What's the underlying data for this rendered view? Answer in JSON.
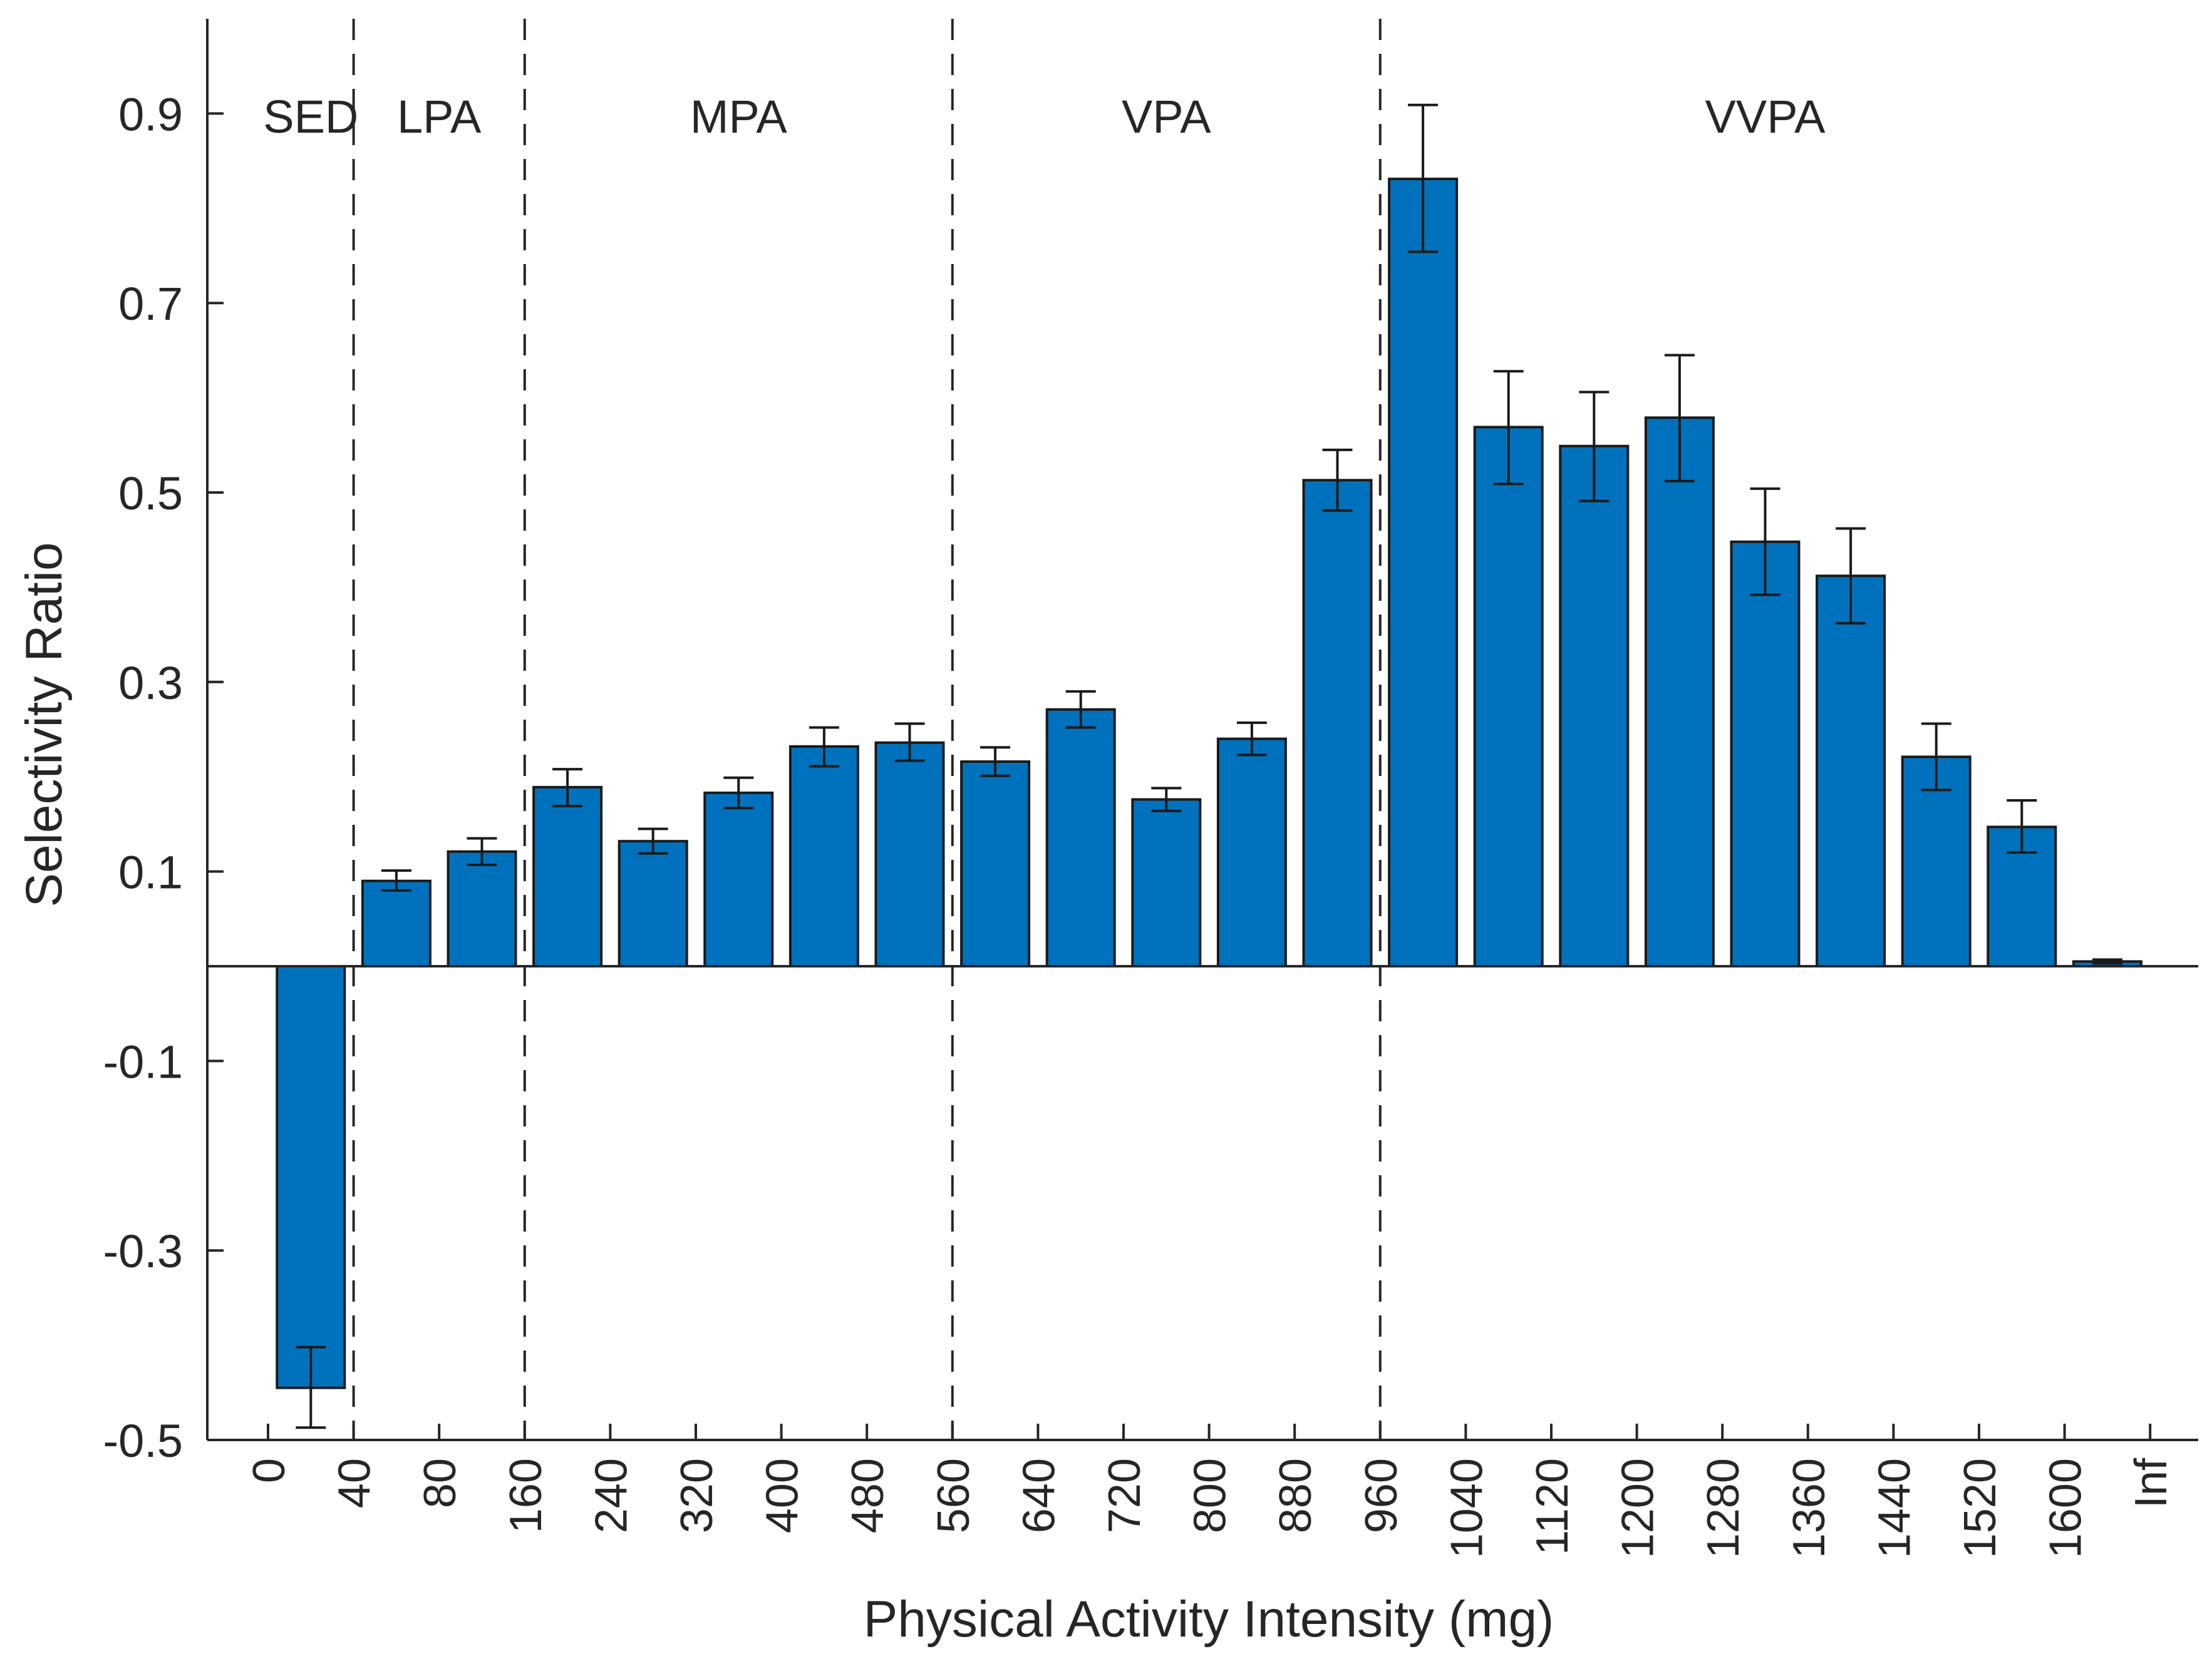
{
  "chart_data": {
    "type": "bar",
    "title": "",
    "xlabel": "Physical Activity Intensity (mg)",
    "ylabel": "Selectivity Ratio",
    "ylim": [
      -0.5,
      1.0
    ],
    "yticks": [
      -0.5,
      -0.3,
      -0.1,
      0.1,
      0.3,
      0.5,
      0.7,
      0.9
    ],
    "ytick_labels": [
      "-0.5",
      "-0.3",
      "-0.1",
      "0.1",
      "0.3",
      "0.5",
      "0.7",
      "0.9"
    ],
    "xtick_labels": [
      "0",
      "40",
      "80",
      "160",
      "240",
      "320",
      "400",
      "480",
      "560",
      "640",
      "720",
      "800",
      "880",
      "960",
      "1040",
      "1120",
      "1200",
      "1280",
      "1360",
      "1440",
      "1520",
      "1600",
      "Inf"
    ],
    "bars": [
      {
        "value": -0.445,
        "err_low": -0.487,
        "err_high": -0.402
      },
      {
        "value": 0.09,
        "err_low": 0.08,
        "err_high": 0.101
      },
      {
        "value": 0.121,
        "err_low": 0.107,
        "err_high": 0.135
      },
      {
        "value": 0.189,
        "err_low": 0.169,
        "err_high": 0.208
      },
      {
        "value": 0.132,
        "err_low": 0.119,
        "err_high": 0.145
      },
      {
        "value": 0.183,
        "err_low": 0.167,
        "err_high": 0.199
      },
      {
        "value": 0.232,
        "err_low": 0.211,
        "err_high": 0.252
      },
      {
        "value": 0.236,
        "err_low": 0.217,
        "err_high": 0.256
      },
      {
        "value": 0.216,
        "err_low": 0.201,
        "err_high": 0.231
      },
      {
        "value": 0.271,
        "err_low": 0.252,
        "err_high": 0.29
      },
      {
        "value": 0.176,
        "err_low": 0.164,
        "err_high": 0.188
      },
      {
        "value": 0.24,
        "err_low": 0.223,
        "err_high": 0.257
      },
      {
        "value": 0.513,
        "err_low": 0.481,
        "err_high": 0.545
      },
      {
        "value": 0.831,
        "err_low": 0.754,
        "err_high": 0.909
      },
      {
        "value": 0.569,
        "err_low": 0.509,
        "err_high": 0.628
      },
      {
        "value": 0.549,
        "err_low": 0.491,
        "err_high": 0.606
      },
      {
        "value": 0.579,
        "err_low": 0.512,
        "err_high": 0.645
      },
      {
        "value": 0.448,
        "err_low": 0.392,
        "err_high": 0.504
      },
      {
        "value": 0.412,
        "err_low": 0.362,
        "err_high": 0.462
      },
      {
        "value": 0.221,
        "err_low": 0.186,
        "err_high": 0.256
      },
      {
        "value": 0.147,
        "err_low": 0.12,
        "err_high": 0.175
      },
      {
        "value": 0.005,
        "err_low": 0.003,
        "err_high": 0.007
      }
    ],
    "zones": [
      {
        "label": "SED",
        "start_bin": 0,
        "end_bin": 1
      },
      {
        "label": "LPA",
        "start_bin": 1,
        "end_bin": 3
      },
      {
        "label": "MPA",
        "start_bin": 3,
        "end_bin": 8
      },
      {
        "label": "VPA",
        "start_bin": 8,
        "end_bin": 13
      },
      {
        "label": "VVPA",
        "start_bin": 13,
        "end_bin": 22
      }
    ],
    "zone_dividers_at_bin": [
      1,
      3,
      8,
      13
    ],
    "colors": {
      "bar": "#0072bd",
      "bar_edge": "#1a1a1a",
      "axis": "#262626",
      "text": "#262626"
    },
    "grid": false,
    "legend": "none"
  }
}
